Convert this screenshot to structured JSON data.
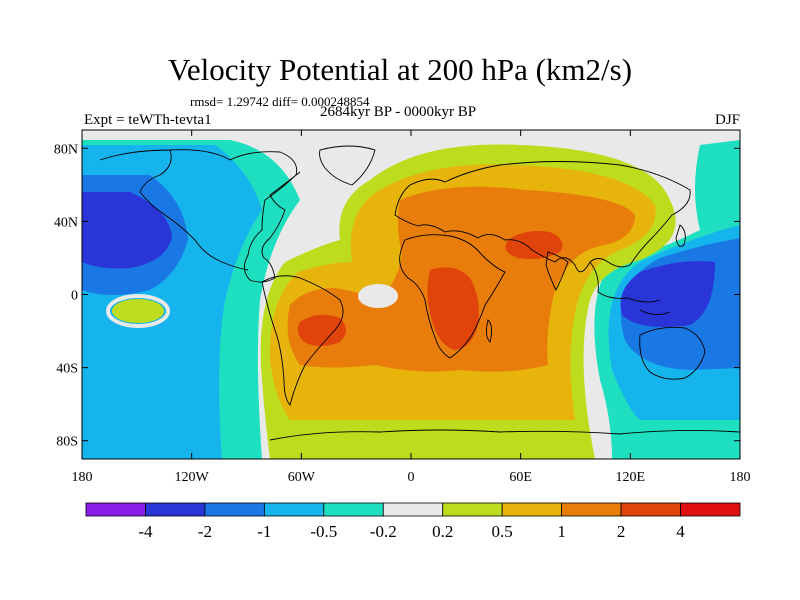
{
  "header": {
    "title": "Velocity Potential at 200 hPa (km2/s)",
    "stats": "rmsd= 1.29742 diff= 0.000248854",
    "expt": "Expt = teWTh-tevta1",
    "period": "2684kyr BP - 0000kyr BP",
    "season": "DJF"
  },
  "map": {
    "projection": "cylindrical-equidistant",
    "lon_range": [
      -180,
      180
    ],
    "lat_range": [
      -90,
      90
    ],
    "lon_ticks": [
      {
        "value": -180,
        "label": "180"
      },
      {
        "value": -120,
        "label": "120W"
      },
      {
        "value": -60,
        "label": "60W"
      },
      {
        "value": 0,
        "label": "0"
      },
      {
        "value": 60,
        "label": "60E"
      },
      {
        "value": 120,
        "label": "120E"
      },
      {
        "value": 180,
        "label": "180"
      }
    ],
    "lat_ticks": [
      {
        "value": 80,
        "label": "80N"
      },
      {
        "value": 40,
        "label": "40N"
      },
      {
        "value": 0,
        "label": "0"
      },
      {
        "value": -40,
        "label": "40S"
      },
      {
        "value": -80,
        "label": "80S"
      }
    ]
  },
  "colorbar": {
    "colors": [
      "#8a1ee6",
      "#2a35d8",
      "#1a78e4",
      "#15b4ec",
      "#1ee0c0",
      "#e9e9e9",
      "#bedc1e",
      "#e6b40a",
      "#e87d0c",
      "#e0440a",
      "#e01010"
    ],
    "labels": [
      "-4",
      "-2",
      "-1",
      "-0.5",
      "-0.2",
      "0.2",
      "0.5",
      "1",
      "2",
      "4"
    ]
  }
}
